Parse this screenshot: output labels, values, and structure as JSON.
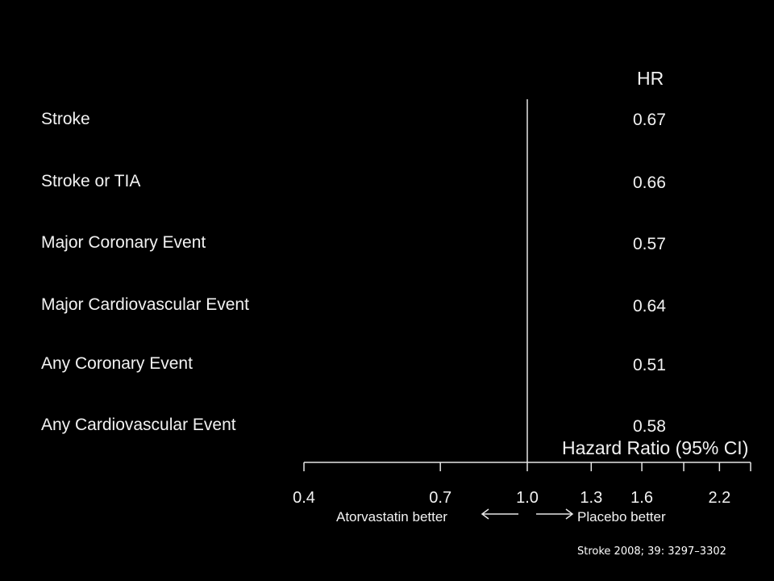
{
  "chart_data": {
    "type": "forest",
    "header": "HR",
    "xlabel": "Hazard Ratio (95% CI)",
    "x_scale": "log",
    "xlim": [
      0.4,
      2.5
    ],
    "reference_line": 1.0,
    "ticks": [
      0.4,
      0.7,
      1.0,
      1.3,
      1.6,
      1.9,
      2.2,
      2.5
    ],
    "tick_labels": [
      {
        "value": 0.4,
        "label": "0.4"
      },
      {
        "value": 0.7,
        "label": "0.7"
      },
      {
        "value": 1.0,
        "label": "1.0"
      },
      {
        "value": 1.3,
        "label": "1.3"
      },
      {
        "value": 1.6,
        "label": "1.6"
      },
      {
        "value": 2.2,
        "label": "2.2"
      }
    ],
    "rows": [
      {
        "label": "Stroke",
        "hr": "0.67"
      },
      {
        "label": "Stroke or TIA",
        "hr": "0.66"
      },
      {
        "label": "Major Coronary Event",
        "hr": "0.57"
      },
      {
        "label": "Major Cardiovascular Event",
        "hr": "0.64"
      },
      {
        "label": "Any Coronary Event",
        "hr": "0.51"
      },
      {
        "label": "Any Cardiovascular Event",
        "hr": "0.58"
      }
    ],
    "direction_left": "Atorvastatin better",
    "direction_right": "Placebo better"
  },
  "citation": "Stroke 2008; 39: 3297–3302",
  "colors": {
    "background": "#000000",
    "foreground": "#f2f2f2",
    "lines": "#e6e6e6"
  }
}
